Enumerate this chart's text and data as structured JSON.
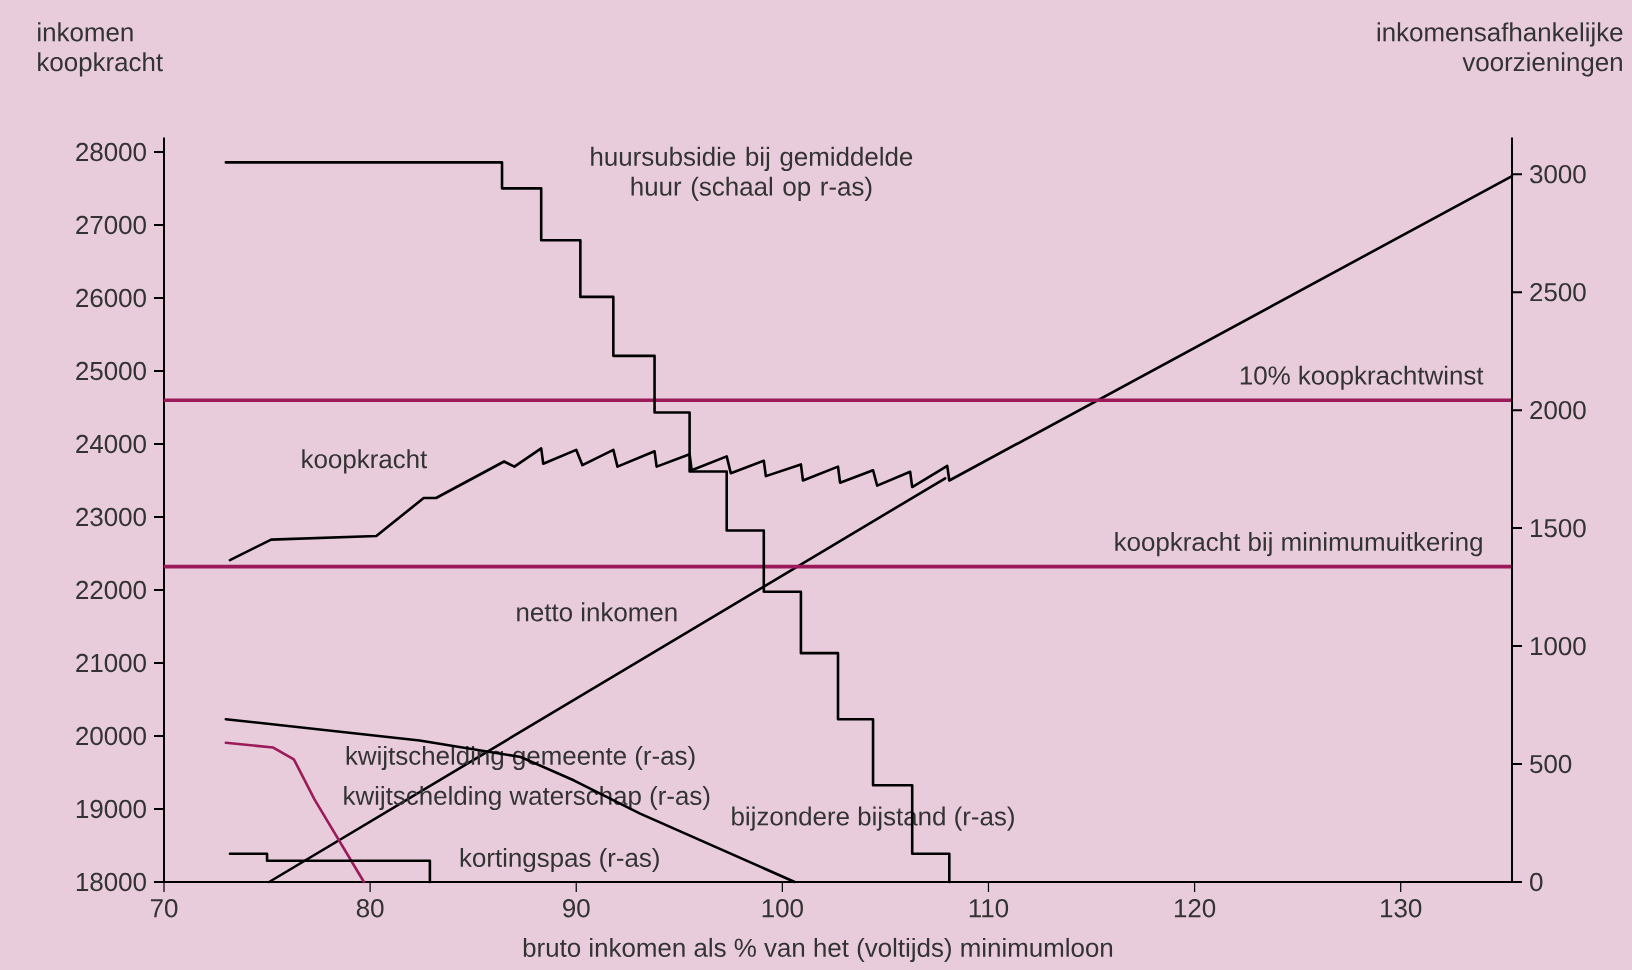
{
  "chart_data": {
    "type": "line",
    "xlabel": "bruto inkomen als % van het (voltijds) minimumloon",
    "ylabel": "inkomen koopkracht",
    "y2label": "inkomensafhankelijke voorzieningen",
    "xlim": [
      70,
      135.4
    ],
    "ylim": [
      18000,
      28200
    ],
    "y2lim": [
      0,
      3156
    ],
    "xticks": [
      70,
      80,
      90,
      100,
      110,
      120,
      130
    ],
    "yticks": [
      18000,
      19000,
      20000,
      21000,
      22000,
      23000,
      24000,
      25000,
      26000,
      27000,
      28000
    ],
    "y2ticks": [
      0,
      500,
      1000,
      1500,
      2000,
      2500,
      3000
    ],
    "grid": false,
    "marker": "none",
    "line_style": "solid",
    "series": [
      {
        "name": "huursubsidie bij gemiddelde huur (schaal op r-as)",
        "type": "step",
        "axis": "y2",
        "color": "#000000",
        "x": [
          73.0,
          86.4,
          88.3,
          90.2,
          91.8,
          93.8,
          95.5,
          97.3,
          99.1,
          100.9,
          102.7,
          104.4,
          106.3,
          108.1
        ],
        "values": [
          3050,
          2940,
          2720,
          2480,
          2230,
          1990,
          1740,
          1490,
          1230,
          970,
          690,
          410,
          120,
          0
        ]
      },
      {
        "name": "koopkracht",
        "axis": "y",
        "color": "#000000",
        "x": [
          73.2,
          75.2,
          80.3,
          82.6,
          83.2,
          86.5,
          87.0,
          88.3,
          88.4,
          90.0,
          90.3,
          91.8,
          92.0,
          93.8,
          93.9,
          95.5,
          95.6,
          97.3,
          97.5,
          99.1,
          99.2,
          100.9,
          101.0,
          102.7,
          102.8,
          104.4,
          104.6,
          106.2,
          106.3,
          108.0,
          108.1,
          135.4
        ],
        "values": [
          22410,
          22690,
          22740,
          23260,
          23260,
          23760,
          23690,
          23940,
          23730,
          23920,
          23710,
          23920,
          23690,
          23900,
          23690,
          23860,
          23640,
          23830,
          23600,
          23770,
          23560,
          23720,
          23500,
          23690,
          23470,
          23640,
          23430,
          23620,
          23410,
          23700,
          23500,
          27670
        ]
      },
      {
        "name": "netto inkomen",
        "axis": "y",
        "color": "#000000",
        "x": [
          75.1,
          107.9
        ],
        "values": [
          18000,
          23530
        ]
      },
      {
        "name": "kwijtschelding gemeente (r-as)",
        "axis": "y2",
        "color": "#000000",
        "x": [
          73.0,
          82.4,
          87.3,
          89.9,
          93.1,
          100.6
        ],
        "values": [
          690,
          600,
          530,
          430,
          290,
          0
        ]
      },
      {
        "name": "kwijtschelding waterschap (r-as)",
        "axis": "y2",
        "color": "#9b1b5a",
        "x": [
          73.0,
          75.3,
          76.3,
          77.3,
          79.7
        ],
        "values": [
          590,
          570,
          520,
          350,
          0
        ]
      },
      {
        "name": "kortingspas (r-as)",
        "type": "step",
        "axis": "y2",
        "color": "#000000",
        "x": [
          73.2,
          75.0,
          82.9,
          82.9
        ],
        "values": [
          120,
          90,
          0,
          0
        ]
      }
    ],
    "ref_lines": [
      {
        "axis": "y",
        "value": 24600,
        "label": "10% koopkrachtwinst",
        "color": "#9b1b5a"
      },
      {
        "axis": "y",
        "value": 22320,
        "label": "koopkracht bij minimumuitkering",
        "color": "#9b1b5a"
      }
    ],
    "annotations": [
      "bijzondere bijstand (r-as)"
    ]
  }
}
